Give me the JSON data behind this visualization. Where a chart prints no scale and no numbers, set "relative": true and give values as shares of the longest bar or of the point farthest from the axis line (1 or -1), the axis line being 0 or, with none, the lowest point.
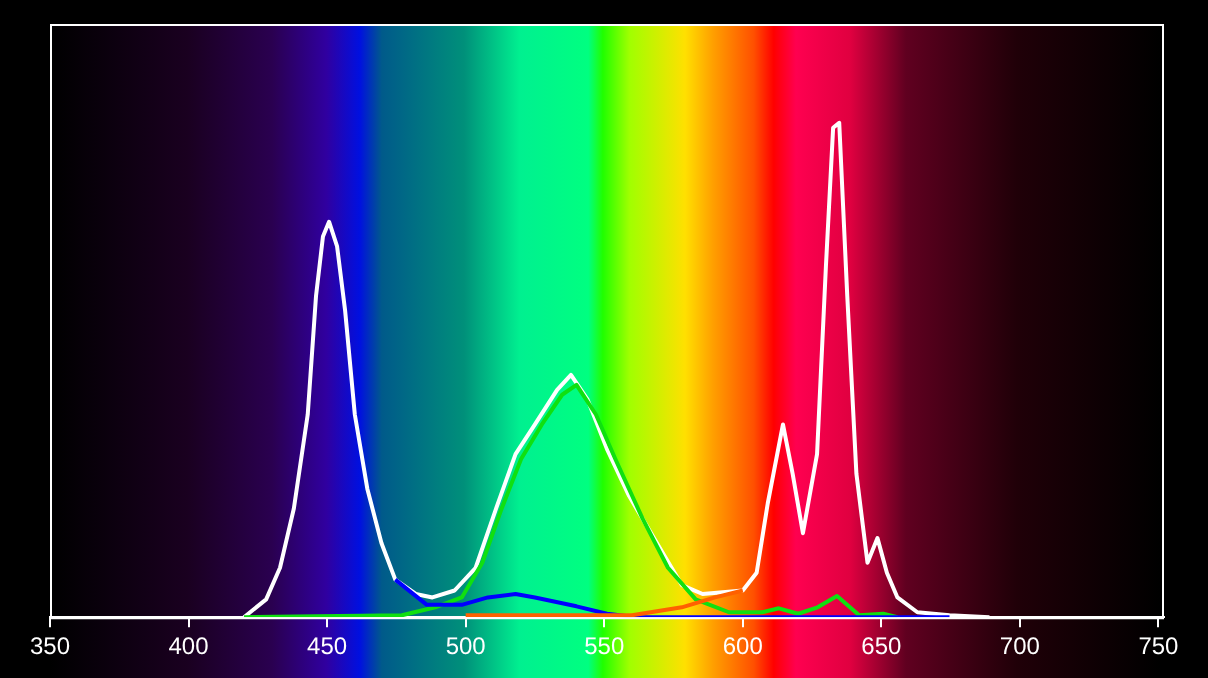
{
  "chart_data": {
    "type": "line",
    "relative": true,
    "xlim": [
      350,
      752
    ],
    "xticks": [
      350,
      400,
      450,
      500,
      550,
      600,
      650,
      700,
      750
    ],
    "marker": "none",
    "line_style": "solid",
    "legend": false,
    "series": [
      {
        "color": "#ffffff",
        "x": [
          420,
          428,
          433,
          438,
          443,
          446,
          448.5,
          450.7,
          453.6,
          456.5,
          460,
          464.5,
          469.6,
          474.6,
          482,
          488,
          496,
          503.6,
          511,
          518,
          525,
          533,
          538,
          544,
          551,
          559,
          569,
          578,
          585.5,
          600,
          605,
          609,
          614.5,
          618,
          621.7,
          626.8,
          630,
          632.6,
          634.8,
          637.7,
          641,
          645,
          648.6,
          652,
          655.8,
          663,
          674.6,
          689
        ],
        "values": [
          0,
          0.036,
          0.1,
          0.22,
          0.41,
          0.65,
          0.77,
          0.8,
          0.75,
          0.62,
          0.41,
          0.26,
          0.15,
          0.076,
          0.047,
          0.04,
          0.054,
          0.1,
          0.22,
          0.33,
          0.39,
          0.46,
          0.49,
          0.44,
          0.34,
          0.245,
          0.15,
          0.065,
          0.047,
          0.054,
          0.09,
          0.23,
          0.39,
          0.29,
          0.17,
          0.33,
          0.71,
          0.99,
          1,
          0.65,
          0.29,
          0.11,
          0.16,
          0.09,
          0.04,
          0.01,
          0.004,
          0
        ]
      },
      {
        "color": "#10e010",
        "x": [
          420,
          477,
          489,
          498.6,
          506,
          513,
          520,
          527.5,
          534.8,
          540,
          547,
          554,
          563.8,
          573,
          583,
          595,
          607,
          613,
          620,
          627,
          634,
          642,
          650.7,
          655.8
        ],
        "values": [
          0,
          0.004,
          0.02,
          0.04,
          0.11,
          0.22,
          0.32,
          0.39,
          0.45,
          0.47,
          0.41,
          0.32,
          0.2,
          0.1,
          0.036,
          0.01,
          0.01,
          0.018,
          0.007,
          0.02,
          0.043,
          0.004,
          0.007,
          0
        ]
      },
      {
        "color": "#0000ff",
        "x": [
          474.6,
          486,
          498.6,
          508,
          518,
          525,
          540,
          551,
          561.6,
          600,
          674.6
        ],
        "values": [
          0.076,
          0.025,
          0.025,
          0.04,
          0.047,
          0.04,
          0.022,
          0.007,
          0,
          0,
          0
        ]
      },
      {
        "color": "#ff6000",
        "x": [
          500,
          560,
          578,
          590,
          600
        ],
        "values": [
          0.004,
          0.004,
          0.02,
          0.04,
          0.054
        ]
      }
    ]
  }
}
